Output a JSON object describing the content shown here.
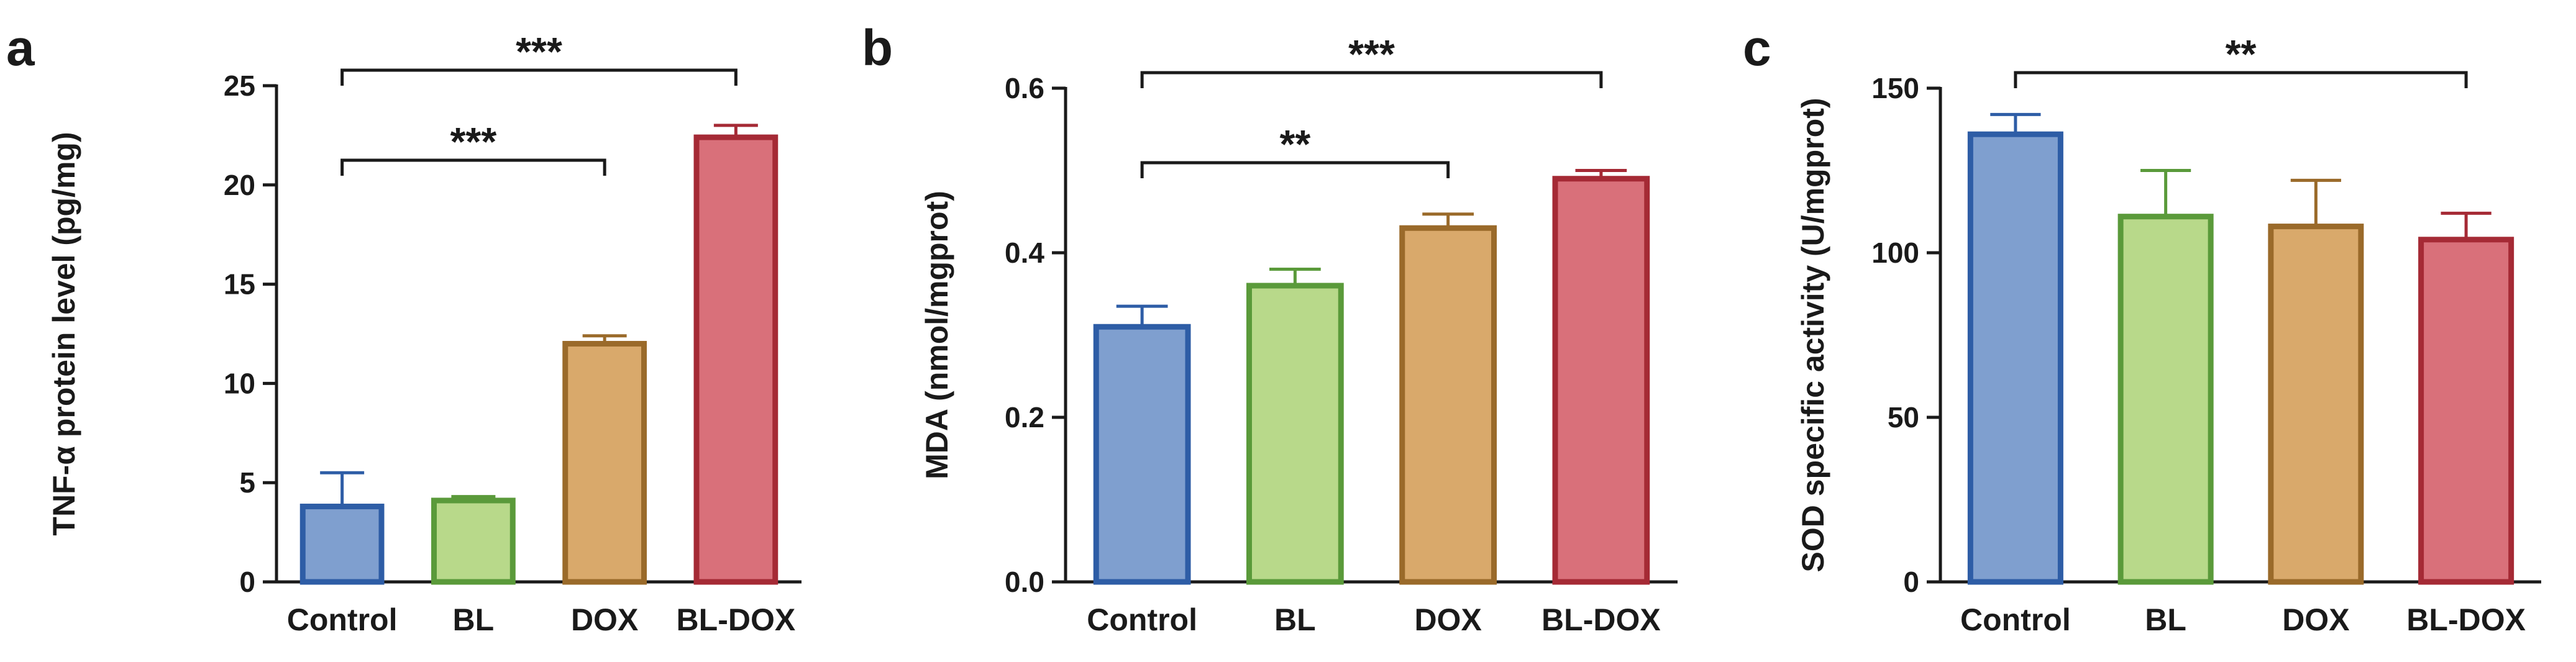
{
  "groups": [
    {
      "name": "Control",
      "fill": "#7f9fcf",
      "stroke": "#2e5da6"
    },
    {
      "name": "BL",
      "fill": "#b8d98a",
      "stroke": "#5a9a3a"
    },
    {
      "name": "DOX",
      "fill": "#d9a96b",
      "stroke": "#9a6a2a"
    },
    {
      "name": "BL-DOX",
      "fill": "#d9707a",
      "stroke": "#a52a35"
    }
  ],
  "chart_data": [
    {
      "panel": "a",
      "type": "bar",
      "title": "",
      "xlabel": "",
      "ylabel": "TNF-α protein level  (pg/mg)",
      "categories": [
        "Control",
        "BL",
        "DOX",
        "BL-DOX"
      ],
      "values": [
        3.8,
        4.1,
        12.0,
        22.4
      ],
      "errors": [
        1.7,
        0.2,
        0.4,
        0.6
      ],
      "ylim": [
        0,
        25
      ],
      "yticks": [
        0,
        5,
        10,
        15,
        20,
        25
      ],
      "ytick_labels": [
        "0",
        "5",
        "10",
        "15",
        "20",
        "25"
      ],
      "grid": false,
      "significance": [
        {
          "from": 0,
          "to": 3,
          "level": 1,
          "label": "***"
        },
        {
          "from": 0,
          "to": 2,
          "level": 0,
          "label": "***"
        }
      ]
    },
    {
      "panel": "b",
      "type": "bar",
      "title": "",
      "xlabel": "",
      "ylabel": "MDA  (nmol/mgprot)",
      "categories": [
        "Control",
        "BL",
        "DOX",
        "BL-DOX"
      ],
      "values": [
        0.31,
        0.36,
        0.43,
        0.49
      ],
      "errors": [
        0.025,
        0.02,
        0.017,
        0.01
      ],
      "ylim": [
        0,
        0.6
      ],
      "yticks": [
        0,
        0.2,
        0.4,
        0.6
      ],
      "ytick_labels": [
        "0.0",
        "0.2",
        "0.4",
        "0.6"
      ],
      "grid": false,
      "significance": [
        {
          "from": 0,
          "to": 3,
          "level": 1,
          "label": "***"
        },
        {
          "from": 0,
          "to": 2,
          "level": 0,
          "label": "**"
        }
      ]
    },
    {
      "panel": "c",
      "type": "bar",
      "title": "",
      "xlabel": "",
      "ylabel": "SOD specific activity (U/mgprot)",
      "categories": [
        "Control",
        "BL",
        "DOX",
        "BL-DOX"
      ],
      "values": [
        136,
        111,
        108,
        104
      ],
      "errors": [
        6,
        14,
        14,
        8
      ],
      "ylim": [
        0,
        150
      ],
      "yticks": [
        0,
        50,
        100,
        150
      ],
      "ytick_labels": [
        "0",
        "50",
        "100",
        "150"
      ],
      "grid": false,
      "significance": [
        {
          "from": 0,
          "to": 3,
          "level": 1,
          "label": "**"
        }
      ]
    }
  ]
}
